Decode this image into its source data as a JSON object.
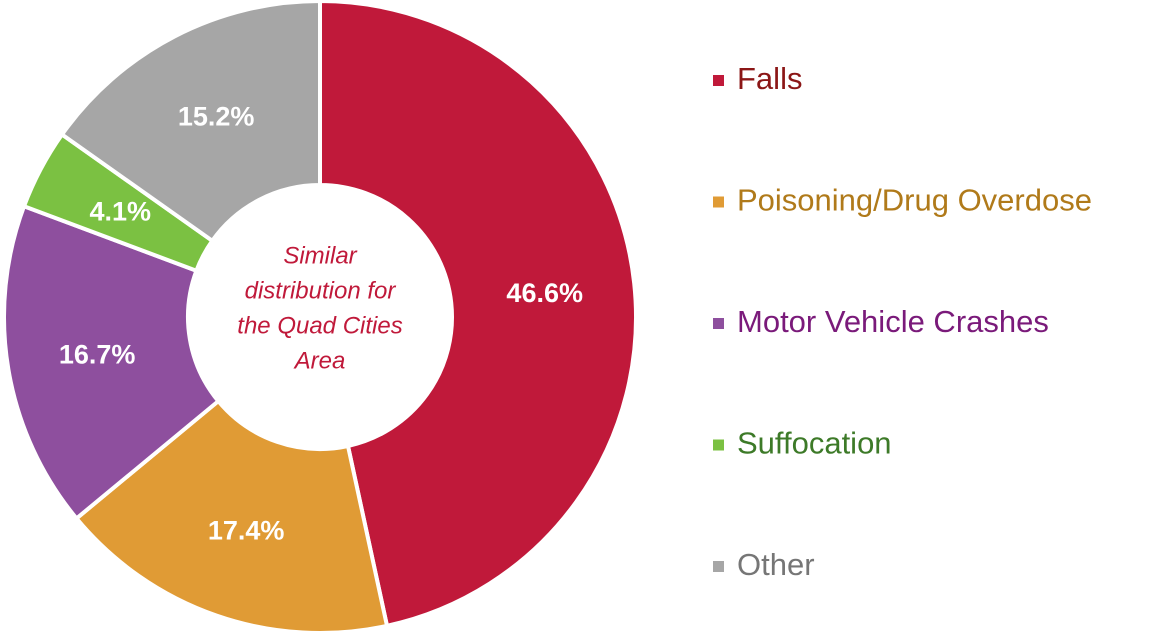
{
  "chart_data": {
    "type": "donut",
    "categories": [
      "Falls",
      "Poisoning/Drug Overdose",
      "Motor Vehicle Crashes",
      "Suffocation",
      "Other"
    ],
    "values": [
      46.6,
      17.4,
      16.7,
      4.1,
      15.2
    ],
    "value_labels": [
      "46.6%",
      "17.4%",
      "16.7%",
      "4.1%",
      "15.2%"
    ],
    "colors": [
      "#c0193a",
      "#e09b35",
      "#8e4f9e",
      "#7bc142",
      "#a6a6a6"
    ],
    "legend_text_colors": [
      "#8b1616",
      "#b07a1a",
      "#7a1a7a",
      "#3d7a28",
      "#767676"
    ],
    "center_text": [
      "Similar",
      "distribution for",
      "the Quad Cities",
      "Area"
    ],
    "legend": "right"
  }
}
